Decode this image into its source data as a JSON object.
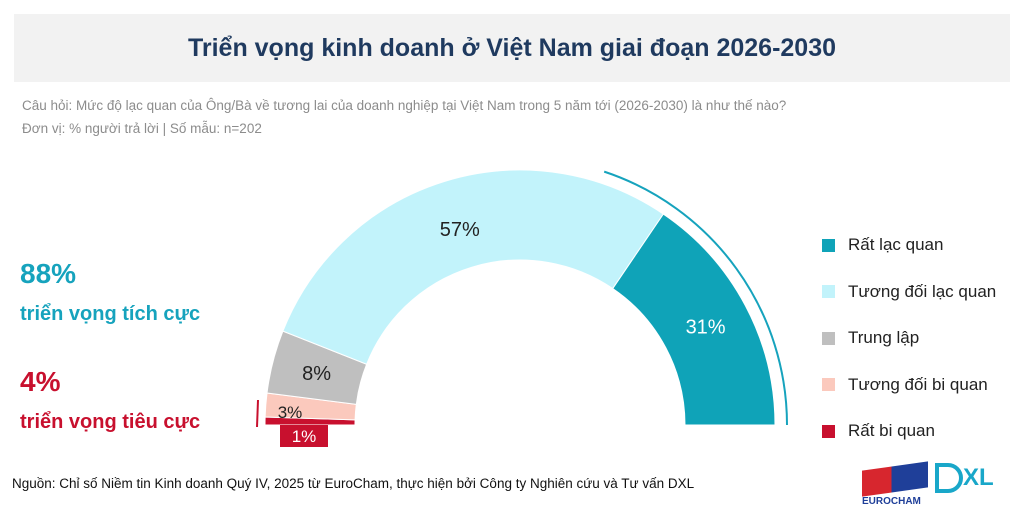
{
  "header": {
    "title": "Triển vọng kinh doanh ở Việt Nam giai đoạn 2026-2030"
  },
  "question": "Câu hỏi: Mức độ lạc quan của Ông/Bà về tương lai của doanh nghiệp tại Việt Nam trong 5 năm tới (2026-2030) là như thế nào?",
  "unit": "Đơn vị: % người trả lời | Số mẫu: n=202",
  "positive": {
    "value": "88%",
    "label": "triển vọng tích cực",
    "color": "#16a3bd"
  },
  "negative": {
    "value": "4%",
    "label": "triển vọng tiêu cực",
    "color": "#c8102e"
  },
  "chart_data": {
    "type": "pie",
    "subtype": "half-donut gauge",
    "series": [
      {
        "name": "Rất bi quan",
        "value": 1,
        "label": "1%",
        "color": "#c8102e"
      },
      {
        "name": "Tương đối bi quan",
        "value": 3,
        "label": "3%",
        "color": "#fbc9bd"
      },
      {
        "name": "Trung lập",
        "value": 8,
        "label": "8%",
        "color": "#bfbfbf"
      },
      {
        "name": "Tương đối lạc quan",
        "value": 57,
        "label": "57%",
        "color": "#c2f3fb"
      },
      {
        "name": "Rất lạc quan",
        "value": 31,
        "label": "31%",
        "color": "#0fa3b8"
      }
    ],
    "legend_order": [
      "Rất lạc quan",
      "Tương đối lạc quan",
      "Trung lập",
      "Tương đối bi quan",
      "Rất bi quan"
    ],
    "legend_position": "right"
  },
  "source": "Nguồn: Chỉ số Niềm tin Kinh doanh Quý IV, 2025 từ EuroCham, thực hiện bởi Công ty Nghiên cứu và Tư vấn DXL",
  "logos": {
    "eurocham": "EUROCHAM",
    "dxl": "DXL"
  }
}
